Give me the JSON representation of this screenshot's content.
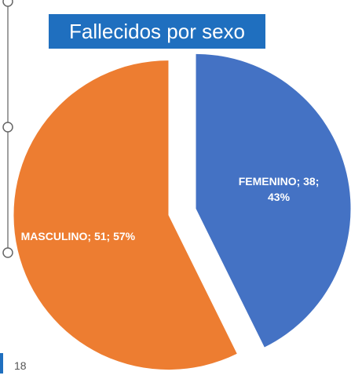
{
  "chart_data": {
    "type": "pie",
    "title": "Fallecidos por sexo",
    "categories": [
      "FEMENINO",
      "MASCULINO"
    ],
    "values": [
      38,
      51
    ],
    "value_labels": [
      "FEMENINO; 38; 43%",
      "MASCULINO; 51; 57%"
    ],
    "colors": [
      "#4472c4",
      "#ed7d31"
    ],
    "exploded": true
  },
  "slide_number": "18"
}
